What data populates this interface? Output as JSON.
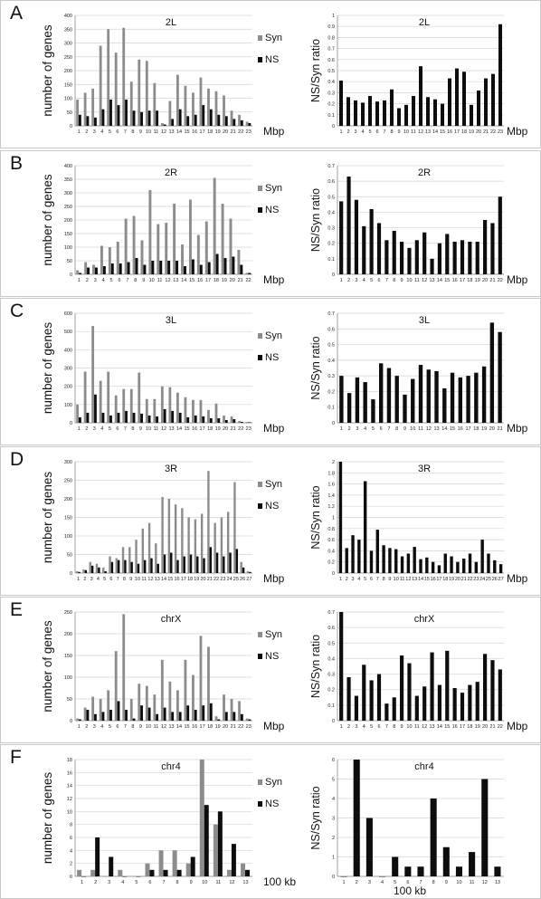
{
  "colors": {
    "syn": "#8c8c8c",
    "ns": "#0d0d0d",
    "ratio": "#0d0d0d",
    "grid": "#d4d4d4",
    "frame": "#c9c9c9"
  },
  "panels": [
    {
      "label": "A",
      "left": {
        "title": "2L",
        "ylabel": "number of genes",
        "xunit": "Mbp",
        "ymax": 400,
        "ystep": 50,
        "legend": [
          "Syn",
          "NS"
        ]
      },
      "right": {
        "title": "2L",
        "ylabel": "NS/Syn ratio",
        "xunit": "Mbp",
        "ymax": 1,
        "ystep": 0.1
      }
    },
    {
      "label": "B",
      "left": {
        "title": "2R",
        "ylabel": "number of genes",
        "xunit": "Mbp",
        "ymax": 400,
        "ystep": 50,
        "legend": [
          "Syn",
          "NS"
        ]
      },
      "right": {
        "title": "2R",
        "ylabel": "NS/Syn ratio",
        "xunit": "Mbp",
        "ymax": 0.7,
        "ystep": 0.1
      }
    },
    {
      "label": "C",
      "left": {
        "title": "3L",
        "ylabel": "number of genes",
        "xunit": "Mbp",
        "ymax": 600,
        "ystep": 100,
        "legend": [
          "Syn",
          "NS"
        ]
      },
      "right": {
        "title": "3L",
        "ylabel": "NS/Syn ratio",
        "xunit": "Mbp",
        "ymax": 0.7,
        "ystep": 0.1
      }
    },
    {
      "label": "D",
      "left": {
        "title": "3R",
        "ylabel": "number of genes",
        "xunit": "Mbp",
        "ymax": 300,
        "ystep": 50,
        "legend": [
          "Syn",
          "NS"
        ]
      },
      "right": {
        "title": "3R",
        "ylabel": "NS/Syn ratio",
        "xunit": "Mbp",
        "ymax": 2,
        "ystep": 0.2
      }
    },
    {
      "label": "E",
      "left": {
        "title": "chrX",
        "ylabel": "number of genes",
        "xunit": "Mbp",
        "ymax": 250,
        "ystep": 50,
        "legend": [
          "Syn",
          "NS"
        ]
      },
      "right": {
        "title": "chrX",
        "ylabel": "NS/Syn ratio",
        "xunit": "Mbp",
        "ymax": 0.7,
        "ystep": 0.1
      }
    },
    {
      "label": "F",
      "left": {
        "title": "chr4",
        "ylabel": "number of genes",
        "xunit": "100 kb",
        "ymax": 18,
        "ystep": 2,
        "legend": [
          "Syn",
          "NS"
        ]
      },
      "right": {
        "title": "chr4",
        "ylabel": "NS/Syn ratio",
        "xunit": "100 kb",
        "ymax": 6,
        "ystep": 1
      }
    }
  ],
  "chart_data": [
    {
      "type": "bar",
      "title": "2L",
      "xlabel": "Mbp",
      "ylabel": "number of genes",
      "ylim": [
        0,
        400
      ],
      "grid": true,
      "legend": "right",
      "categories": [
        "1",
        "2",
        "3",
        "4",
        "5",
        "6",
        "7",
        "8",
        "9",
        "10",
        "11",
        "12",
        "13",
        "14",
        "15",
        "16",
        "17",
        "18",
        "19",
        "20",
        "21",
        "22",
        "23"
      ],
      "series": [
        {
          "name": "Syn",
          "values": [
            95,
            120,
            135,
            290,
            350,
            265,
            355,
            160,
            240,
            235,
            155,
            10,
            90,
            185,
            145,
            120,
            175,
            135,
            125,
            110,
            55,
            40,
            15
          ]
        },
        {
          "name": "NS",
          "values": [
            40,
            35,
            30,
            60,
            95,
            75,
            95,
            55,
            50,
            55,
            55,
            5,
            25,
            60,
            35,
            40,
            75,
            60,
            40,
            35,
            25,
            20,
            10
          ]
        }
      ]
    },
    {
      "type": "bar",
      "title": "2L",
      "xlabel": "Mbp",
      "ylabel": "NS/Syn ratio",
      "ylim": [
        0,
        1
      ],
      "grid": true,
      "categories": [
        "1",
        "2",
        "3",
        "4",
        "5",
        "6",
        "7",
        "8",
        "9",
        "10",
        "11",
        "12",
        "13",
        "14",
        "15",
        "16",
        "17",
        "18",
        "19",
        "20",
        "21",
        "22",
        "23"
      ],
      "values": [
        0.41,
        0.26,
        0.23,
        0.21,
        0.27,
        0.22,
        0.23,
        0.33,
        0.16,
        0.19,
        0.27,
        0.54,
        0.26,
        0.24,
        0.2,
        0.43,
        0.52,
        0.49,
        0.19,
        0.32,
        0.43,
        0.47,
        0.92
      ]
    },
    {
      "type": "bar",
      "title": "2R",
      "xlabel": "Mbp",
      "ylabel": "number of genes",
      "ylim": [
        0,
        400
      ],
      "grid": true,
      "legend": "right",
      "categories": [
        "1",
        "2",
        "3",
        "4",
        "5",
        "6",
        "7",
        "8",
        "9",
        "10",
        "11",
        "12",
        "13",
        "14",
        "15",
        "16",
        "17",
        "18",
        "19",
        "20",
        "21",
        "22"
      ],
      "series": [
        {
          "name": "Syn",
          "values": [
            15,
            45,
            35,
            105,
            100,
            120,
            205,
            215,
            125,
            310,
            185,
            190,
            260,
            110,
            275,
            145,
            195,
            355,
            260,
            205,
            90,
            5
          ]
        },
        {
          "name": "NS",
          "values": [
            5,
            25,
            25,
            30,
            40,
            40,
            45,
            60,
            35,
            50,
            50,
            50,
            50,
            30,
            55,
            35,
            45,
            75,
            60,
            65,
            35,
            5
          ]
        }
      ]
    },
    {
      "type": "bar",
      "title": "2R",
      "xlabel": "Mbp",
      "ylabel": "NS/Syn ratio",
      "ylim": [
        0,
        0.7
      ],
      "grid": true,
      "categories": [
        "1",
        "2",
        "3",
        "4",
        "5",
        "6",
        "7",
        "8",
        "9",
        "10",
        "11",
        "12",
        "13",
        "14",
        "15",
        "16",
        "17",
        "18",
        "19",
        "20",
        "21",
        "22"
      ],
      "values": [
        0.47,
        0.63,
        0.48,
        0.31,
        0.42,
        0.33,
        0.22,
        0.28,
        0.21,
        0.17,
        0.22,
        0.27,
        0.1,
        0.2,
        0.26,
        0.21,
        0.22,
        0.21,
        0.21,
        0.35,
        0.33,
        0.5
      ]
    },
    {
      "type": "bar",
      "title": "3L",
      "xlabel": "Mbp",
      "ylabel": "number of genes",
      "ylim": [
        0,
        600
      ],
      "grid": true,
      "legend": "right",
      "categories": [
        "1",
        "2",
        "3",
        "4",
        "5",
        "6",
        "7",
        "8",
        "9",
        "10",
        "11",
        "12",
        "13",
        "14",
        "15",
        "16",
        "17",
        "18",
        "19",
        "20",
        "21",
        "22",
        "23"
      ],
      "series": [
        {
          "name": "Syn",
          "values": [
            100,
            280,
            530,
            230,
            280,
            150,
            185,
            185,
            275,
            130,
            130,
            200,
            195,
            165,
            140,
            125,
            125,
            70,
            105,
            40,
            35,
            10,
            5
          ]
        },
        {
          "name": "NS",
          "values": [
            30,
            55,
            155,
            55,
            40,
            55,
            65,
            55,
            50,
            40,
            35,
            75,
            65,
            55,
            30,
            40,
            35,
            25,
            25,
            15,
            20,
            5,
            3
          ]
        }
      ]
    },
    {
      "type": "bar",
      "title": "3L",
      "xlabel": "Mbp",
      "ylabel": "NS/Syn ratio",
      "ylim": [
        0,
        0.7
      ],
      "grid": true,
      "categories": [
        "1",
        "2",
        "3",
        "4",
        "5",
        "6",
        "7",
        "8",
        "9",
        "10",
        "11",
        "12",
        "13",
        "14",
        "15",
        "16",
        "17",
        "18",
        "19",
        "20",
        "21"
      ],
      "values": [
        0.3,
        0.19,
        0.29,
        0.26,
        0.15,
        0.38,
        0.35,
        0.3,
        0.18,
        0.28,
        0.37,
        0.34,
        0.33,
        0.22,
        0.32,
        0.29,
        0.3,
        0.32,
        0.36,
        0.64,
        0.58
      ]
    },
    {
      "type": "bar",
      "title": "3R",
      "xlabel": "Mbp",
      "ylabel": "number of genes",
      "ylim": [
        0,
        300
      ],
      "grid": true,
      "legend": "right",
      "categories": [
        "1",
        "2",
        "3",
        "4",
        "5",
        "6",
        "7",
        "8",
        "9",
        "10",
        "11",
        "12",
        "13",
        "14",
        "15",
        "16",
        "17",
        "18",
        "19",
        "20",
        "21",
        "22",
        "23",
        "24",
        "25",
        "26",
        "27"
      ],
      "series": [
        {
          "name": "Syn",
          "values": [
            5,
            10,
            30,
            25,
            15,
            45,
            40,
            70,
            70,
            90,
            120,
            135,
            80,
            205,
            200,
            185,
            175,
            150,
            145,
            160,
            275,
            135,
            150,
            165,
            245,
            30,
            5
          ]
        },
        {
          "name": "NS",
          "values": [
            3,
            8,
            20,
            15,
            5,
            30,
            35,
            35,
            30,
            25,
            35,
            40,
            25,
            50,
            55,
            35,
            45,
            50,
            45,
            40,
            70,
            55,
            45,
            55,
            65,
            15,
            3
          ]
        }
      ]
    },
    {
      "type": "bar",
      "title": "3R",
      "xlabel": "Mbp",
      "ylabel": "NS/Syn ratio",
      "ylim": [
        0,
        2
      ],
      "grid": true,
      "categories": [
        "1",
        "2",
        "3",
        "4",
        "5",
        "6",
        "7",
        "8",
        "9",
        "10",
        "11",
        "12",
        "13",
        "14",
        "15",
        "16",
        "17",
        "18",
        "19",
        "20",
        "21",
        "22",
        "23",
        "24",
        "25",
        "26",
        "27"
      ],
      "values": [
        2,
        0.45,
        0.68,
        0.6,
        1.65,
        0.4,
        0.78,
        0.5,
        0.45,
        0.43,
        0.3,
        0.35,
        0.47,
        0.25,
        0.28,
        0.2,
        0.14,
        0.35,
        0.3,
        0.2,
        0.26,
        0.35,
        0.2,
        0.6,
        0.35,
        0.23,
        0.16
      ]
    },
    {
      "type": "bar",
      "title": "chrX",
      "xlabel": "Mbp",
      "ylabel": "number of genes",
      "ylim": [
        0,
        250
      ],
      "grid": true,
      "legend": "right",
      "categories": [
        "1",
        "2",
        "3",
        "4",
        "5",
        "6",
        "7",
        "8",
        "9",
        "10",
        "11",
        "12",
        "13",
        "14",
        "15",
        "16",
        "17",
        "18",
        "19",
        "20",
        "21",
        "22",
        "23"
      ],
      "series": [
        {
          "name": "Syn",
          "values": [
            5,
            30,
            55,
            50,
            70,
            160,
            245,
            50,
            85,
            80,
            60,
            140,
            90,
            70,
            140,
            105,
            195,
            170,
            10,
            60,
            50,
            45,
            5
          ]
        },
        {
          "name": "NS",
          "values": [
            3,
            25,
            15,
            20,
            25,
            45,
            25,
            5,
            35,
            30,
            15,
            30,
            20,
            20,
            35,
            25,
            35,
            40,
            3,
            20,
            20,
            15,
            3
          ]
        }
      ]
    },
    {
      "type": "bar",
      "title": "chrX",
      "xlabel": "Mbp",
      "ylabel": "NS/Syn ratio",
      "ylim": [
        0,
        0.7
      ],
      "grid": true,
      "categories": [
        "1",
        "2",
        "3",
        "4",
        "5",
        "6",
        "7",
        "8",
        "9",
        "10",
        "11",
        "12",
        "13",
        "14",
        "15",
        "16",
        "17",
        "18",
        "19",
        "20",
        "21",
        "22"
      ],
      "values": [
        0.7,
        0.28,
        0.16,
        0.36,
        0.26,
        0.3,
        0.11,
        0.15,
        0.42,
        0.37,
        0.16,
        0.22,
        0.44,
        0.23,
        0.45,
        0.21,
        0.18,
        0.23,
        0.25,
        0.43,
        0.39,
        0.33
      ]
    },
    {
      "type": "bar",
      "title": "chr4",
      "xlabel": "100 kb",
      "ylabel": "number of genes",
      "ylim": [
        0,
        18
      ],
      "grid": true,
      "legend": "right",
      "categories": [
        "1",
        "2",
        "3",
        "4",
        "5",
        "6",
        "7",
        "8",
        "9",
        "10",
        "11",
        "12",
        "13"
      ],
      "series": [
        {
          "name": "Syn",
          "values": [
            1,
            1,
            0,
            1,
            0,
            2,
            4,
            4,
            2,
            18,
            8,
            1,
            2
          ]
        },
        {
          "name": "NS",
          "values": [
            0,
            6,
            3,
            0,
            0,
            1,
            1,
            1,
            3,
            11,
            10,
            5,
            1
          ]
        }
      ]
    },
    {
      "type": "bar",
      "title": "chr4",
      "xlabel": "100 kb",
      "ylabel": "NS/Syn ratio",
      "ylim": [
        0,
        6
      ],
      "grid": true,
      "categories": [
        "1",
        "2",
        "3",
        "4",
        "5",
        "6",
        "7",
        "8",
        "9",
        "10",
        "11",
        "12",
        "13"
      ],
      "values": [
        0,
        6,
        3,
        0,
        1,
        0.5,
        0.5,
        4,
        1.5,
        0.5,
        1.25,
        5,
        0.5
      ]
    }
  ]
}
